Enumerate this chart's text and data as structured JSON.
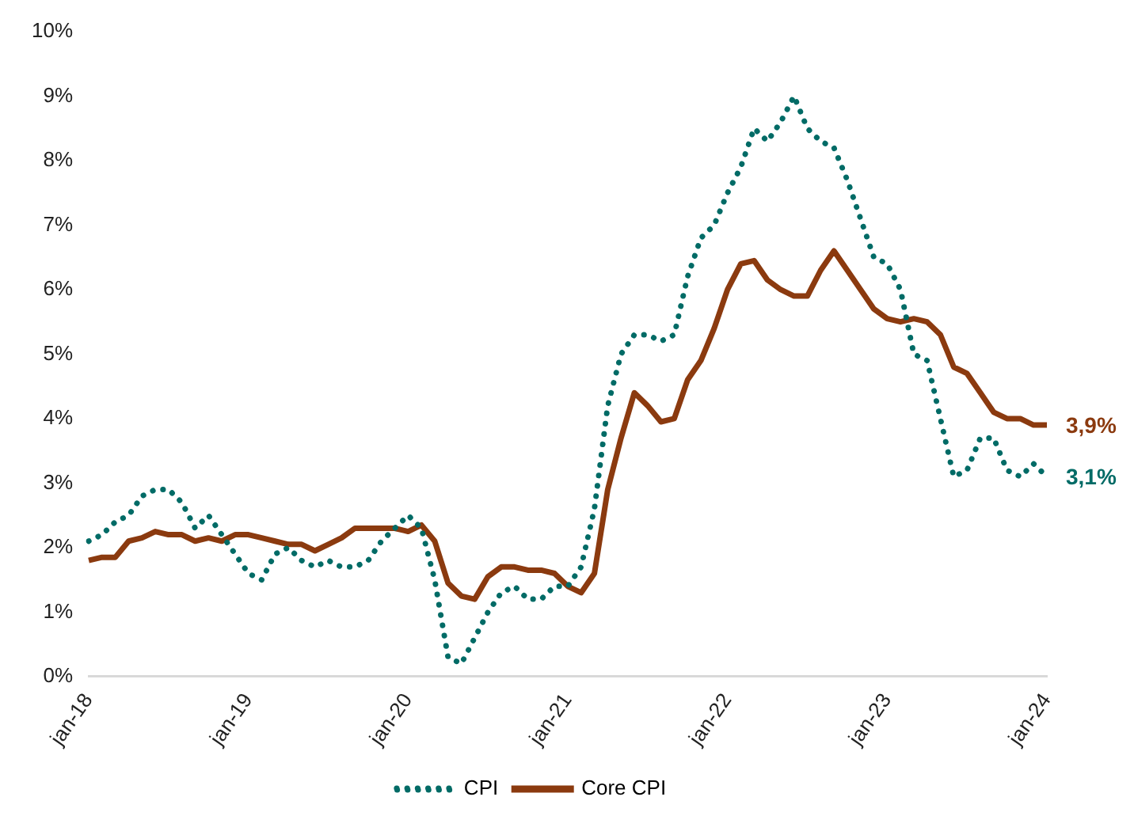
{
  "chart_data": {
    "type": "line",
    "categories": [
      "jan-18",
      null,
      null,
      null,
      null,
      null,
      null,
      null,
      null,
      null,
      null,
      null,
      "jan-19",
      null,
      null,
      null,
      null,
      null,
      null,
      null,
      null,
      null,
      null,
      null,
      "jan-20",
      null,
      null,
      null,
      null,
      null,
      null,
      null,
      null,
      null,
      null,
      null,
      "jan-21",
      null,
      null,
      null,
      null,
      null,
      null,
      null,
      null,
      null,
      null,
      null,
      "jan-22",
      null,
      null,
      null,
      null,
      null,
      null,
      null,
      null,
      null,
      null,
      null,
      "jan-23",
      null,
      null,
      null,
      null,
      null,
      null,
      null,
      null,
      null,
      null,
      null,
      "jan-24"
    ],
    "series": [
      {
        "name": "CPI",
        "color": "#006b66",
        "line_style": "dotted",
        "values": [
          2.1,
          2.2,
          2.4,
          2.5,
          2.8,
          2.9,
          2.9,
          2.7,
          2.3,
          2.5,
          2.2,
          1.9,
          1.6,
          1.5,
          1.9,
          2.0,
          1.8,
          1.7,
          1.8,
          1.7,
          1.7,
          1.8,
          2.1,
          2.3,
          2.5,
          2.3,
          1.5,
          0.3,
          0.2,
          0.6,
          1.0,
          1.3,
          1.4,
          1.2,
          1.2,
          1.4,
          1.4,
          1.7,
          2.6,
          4.2,
          5.0,
          5.3,
          5.3,
          5.2,
          5.3,
          6.2,
          6.8,
          7.0,
          7.5,
          7.9,
          8.5,
          8.3,
          8.6,
          9.0,
          8.5,
          8.3,
          8.2,
          7.7,
          7.1,
          6.5,
          6.4,
          6.0,
          5.0,
          4.9,
          4.0,
          3.1,
          3.2,
          3.7,
          3.7,
          3.2,
          3.1,
          3.3,
          3.1
        ],
        "value_labels": [
          null,
          null,
          null,
          null,
          null,
          null,
          null,
          null,
          null,
          null,
          null,
          null,
          null,
          null,
          null,
          null,
          null,
          null,
          null,
          null,
          null,
          null,
          null,
          null,
          null,
          null,
          null,
          null,
          null,
          null,
          null,
          null,
          null,
          null,
          null,
          null,
          null,
          null,
          null,
          null,
          null,
          null,
          null,
          null,
          null,
          null,
          null,
          null,
          null,
          null,
          null,
          null,
          null,
          null,
          null,
          null,
          null,
          null,
          null,
          null,
          null,
          null,
          null,
          null,
          null,
          null,
          null,
          null,
          null,
          null,
          null,
          null,
          "3,1%"
        ]
      },
      {
        "name": "Core CPI",
        "color": "#8b3a0f",
        "line_style": "solid",
        "values": [
          1.8,
          1.85,
          1.85,
          2.1,
          2.15,
          2.25,
          2.2,
          2.2,
          2.1,
          2.15,
          2.1,
          2.2,
          2.2,
          2.15,
          2.1,
          2.05,
          2.05,
          1.95,
          2.05,
          2.15,
          2.3,
          2.3,
          2.3,
          2.3,
          2.25,
          2.35,
          2.1,
          1.45,
          1.25,
          1.2,
          1.55,
          1.7,
          1.7,
          1.65,
          1.65,
          1.6,
          1.4,
          1.3,
          1.6,
          2.9,
          3.7,
          4.4,
          4.2,
          3.95,
          4.0,
          4.6,
          4.9,
          5.4,
          6.0,
          6.4,
          6.45,
          6.15,
          6.0,
          5.9,
          5.9,
          6.3,
          6.6,
          6.3,
          6.0,
          5.7,
          5.55,
          5.5,
          5.55,
          5.5,
          5.3,
          4.8,
          4.7,
          4.4,
          4.1,
          4.0,
          4.0,
          3.9,
          3.9
        ],
        "value_labels": [
          null,
          null,
          null,
          null,
          null,
          null,
          null,
          null,
          null,
          null,
          null,
          null,
          null,
          null,
          null,
          null,
          null,
          null,
          null,
          null,
          null,
          null,
          null,
          null,
          null,
          null,
          null,
          null,
          null,
          null,
          null,
          null,
          null,
          null,
          null,
          null,
          null,
          null,
          null,
          null,
          null,
          null,
          null,
          null,
          null,
          null,
          null,
          null,
          null,
          null,
          null,
          null,
          null,
          null,
          null,
          null,
          null,
          null,
          null,
          null,
          null,
          null,
          null,
          null,
          null,
          null,
          null,
          null,
          null,
          null,
          null,
          null,
          "3,9%"
        ]
      }
    ],
    "ylim": [
      0,
      10
    ],
    "yticks": [
      {
        "value": 0,
        "label": "0%"
      },
      {
        "value": 1,
        "label": "1%"
      },
      {
        "value": 2,
        "label": "2%"
      },
      {
        "value": 3,
        "label": "3%"
      },
      {
        "value": 4,
        "label": "4%"
      },
      {
        "value": 5,
        "label": "5%"
      },
      {
        "value": 6,
        "label": "6%"
      },
      {
        "value": 7,
        "label": "7%"
      },
      {
        "value": 8,
        "label": "8%"
      },
      {
        "value": 9,
        "label": "9%"
      },
      {
        "value": 10,
        "label": "10%"
      }
    ],
    "grid": false,
    "legend": "bottom",
    "marker": "none"
  }
}
